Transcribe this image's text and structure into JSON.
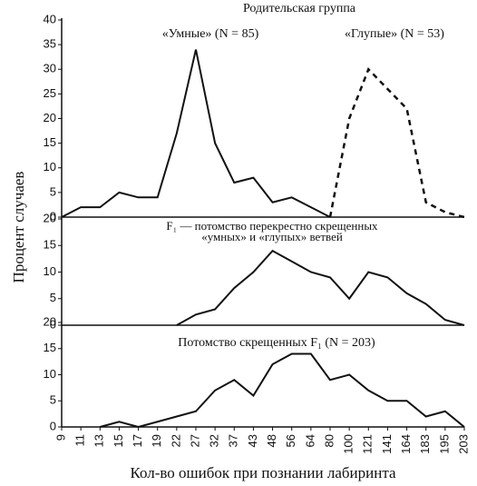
{
  "chart_data": [
    {
      "type": "line",
      "title": "Родительская группа",
      "ylabel": "Процент случаев",
      "categories": [
        "9",
        "11",
        "13",
        "15",
        "17",
        "19",
        "22",
        "27",
        "32",
        "37",
        "43",
        "48",
        "56",
        "64",
        "80",
        "100",
        "121",
        "141",
        "164",
        "183",
        "195",
        "203"
      ],
      "series": [
        {
          "name": "«Умные» (N = 85)",
          "color": "#111111",
          "dashed": false,
          "values": [
            0,
            2,
            2,
            5,
            4,
            4,
            17,
            34,
            15,
            7,
            8,
            3,
            4,
            2,
            0,
            null,
            null,
            null,
            null,
            null,
            null,
            null
          ]
        },
        {
          "name": "«Глупые» (N = 53)",
          "color": "#111111",
          "dashed": true,
          "values": [
            null,
            null,
            null,
            null,
            null,
            null,
            null,
            null,
            null,
            null,
            null,
            null,
            null,
            null,
            0,
            20,
            30,
            26,
            22,
            3,
            1,
            0
          ]
        }
      ],
      "ylim": [
        0,
        40
      ],
      "yticks": [
        0,
        5,
        10,
        15,
        20,
        25,
        30,
        35,
        40
      ]
    },
    {
      "type": "line",
      "title": [
        "F₁ — потомство перекрестно скрещенных",
        "«умных» и «глупых» ветвей"
      ],
      "categories": [
        "9",
        "11",
        "13",
        "15",
        "17",
        "19",
        "22",
        "27",
        "32",
        "37",
        "43",
        "48",
        "56",
        "64",
        "80",
        "100",
        "121",
        "141",
        "164",
        "183",
        "195",
        "203"
      ],
      "series": [
        {
          "color": "#111111",
          "dashed": false,
          "values": [
            null,
            null,
            null,
            null,
            null,
            null,
            0,
            2,
            3,
            7,
            10,
            14,
            12,
            10,
            9,
            5,
            10,
            9,
            6,
            4,
            1,
            0
          ]
        }
      ],
      "ylim": [
        0,
        20
      ],
      "yticks": [
        0,
        5,
        10,
        15,
        20
      ]
    },
    {
      "type": "line",
      "title": "Потомство скрещенных F₁ (N = 203)",
      "xlabel": "Кол-во ошибок при познании лабиринта",
      "categories": [
        "9",
        "11",
        "13",
        "15",
        "17",
        "19",
        "22",
        "27",
        "32",
        "37",
        "43",
        "48",
        "56",
        "64",
        "80",
        "100",
        "121",
        "141",
        "164",
        "183",
        "195",
        "203"
      ],
      "series": [
        {
          "color": "#111111",
          "dashed": false,
          "values": [
            null,
            null,
            0,
            1,
            0,
            1,
            2,
            3,
            7,
            9,
            6,
            12,
            14,
            14,
            9,
            10,
            7,
            5,
            5,
            2,
            3,
            0
          ]
        }
      ],
      "ylim": [
        0,
        20
      ],
      "yticks": [
        0,
        5,
        10,
        15,
        20
      ]
    }
  ]
}
